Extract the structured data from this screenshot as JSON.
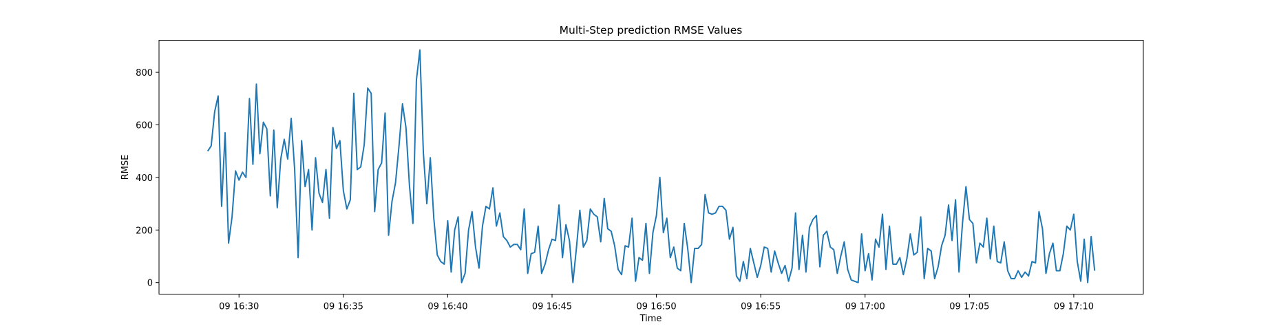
{
  "chart_data": {
    "type": "line",
    "title": "Multi-Step prediction RMSE Values",
    "xlabel": "Time",
    "ylabel": "RMSE",
    "x_start": "09 16:28:30",
    "x_end": "09 17:11:00",
    "xlim": [
      "09 16:26:10",
      "09 17:13:20"
    ],
    "ylim": [
      -44,
      922
    ],
    "x_ticks": [
      "09 16:30",
      "09 16:35",
      "09 16:40",
      "09 16:45",
      "09 16:50",
      "09 16:55",
      "09 17:00",
      "09 17:05",
      "09 17:10"
    ],
    "y_ticks": [
      0,
      200,
      400,
      600,
      800
    ],
    "grid": false,
    "series": [
      {
        "color": "#1f77b4",
        "values": [
          500,
          520,
          650,
          710,
          290,
          570,
          150,
          250,
          425,
          390,
          420,
          400,
          700,
          450,
          755,
          490,
          610,
          585,
          330,
          580,
          285,
          470,
          545,
          470,
          625,
          430,
          95,
          540,
          365,
          430,
          200,
          475,
          340,
          305,
          430,
          245,
          590,
          510,
          540,
          350,
          280,
          315,
          720,
          430,
          440,
          525,
          740,
          720,
          270,
          430,
          455,
          645,
          180,
          310,
          380,
          520,
          680,
          590,
          370,
          225,
          770,
          885,
          495,
          300,
          475,
          245,
          105,
          80,
          70,
          235,
          40,
          200,
          250,
          0,
          35,
          200,
          270,
          135,
          55,
          215,
          290,
          280,
          360,
          215,
          265,
          175,
          160,
          135,
          145,
          145,
          125,
          280,
          35,
          110,
          115,
          215,
          35,
          70,
          125,
          165,
          160,
          295,
          95,
          220,
          160,
          0,
          130,
          275,
          135,
          160,
          280,
          260,
          250,
          155,
          320,
          205,
          195,
          140,
          50,
          30,
          140,
          135,
          245,
          5,
          95,
          85,
          225,
          35,
          190,
          255,
          400,
          190,
          245,
          95,
          135,
          55,
          45,
          225,
          130,
          0,
          130,
          130,
          145,
          335,
          265,
          260,
          265,
          290,
          290,
          275,
          165,
          210,
          25,
          5,
          80,
          15,
          130,
          75,
          20,
          65,
          135,
          130,
          40,
          120,
          75,
          35,
          65,
          5,
          55,
          265,
          50,
          180,
          40,
          210,
          240,
          255,
          60,
          180,
          195,
          135,
          125,
          35,
          100,
          155,
          50,
          10,
          5,
          0,
          185,
          45,
          110,
          10,
          165,
          135,
          260,
          50,
          215,
          70,
          70,
          95,
          30,
          90,
          185,
          105,
          115,
          250,
          15,
          130,
          120,
          15,
          60,
          140,
          180,
          295,
          160,
          315,
          40,
          225,
          365,
          240,
          225,
          75,
          150,
          135,
          245,
          90,
          215,
          80,
          75,
          155,
          45,
          15,
          15,
          45,
          20,
          40,
          25,
          80,
          75,
          270,
          205,
          35,
          110,
          150,
          45,
          45,
          110,
          215,
          200,
          260,
          80,
          5,
          165,
          0,
          175,
          45
        ]
      }
    ]
  }
}
